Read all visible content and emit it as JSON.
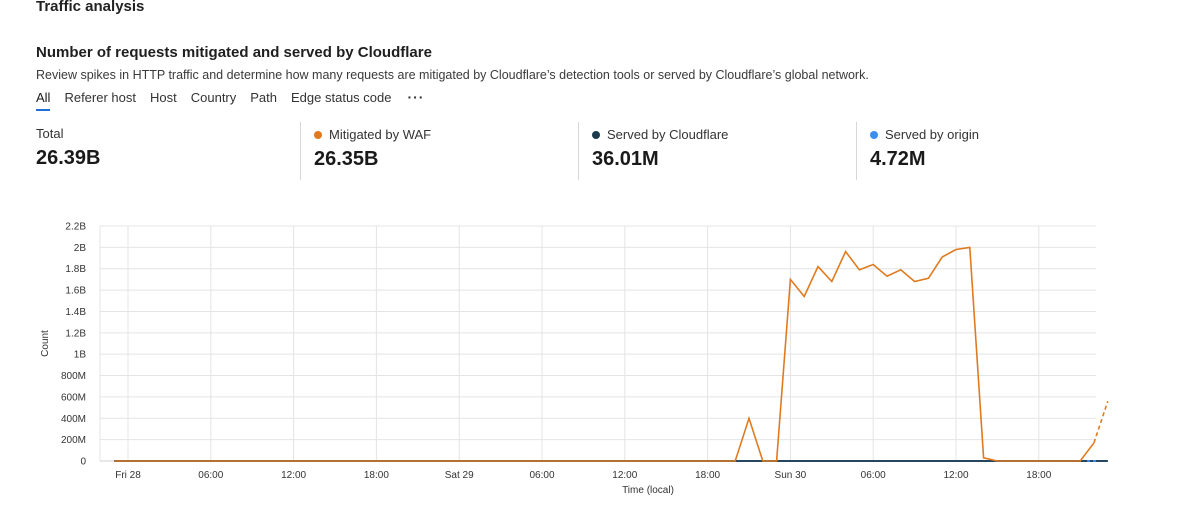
{
  "page": {
    "section_title": "Traffic analysis",
    "card_title": "Number of requests mitigated and served by Cloudflare",
    "card_description": "Review spikes in HTTP traffic and determine how many requests are mitigated by Cloudflare’s detection tools or served by Cloudflare’s global network."
  },
  "tabs": [
    "All",
    "Referer host",
    "Host",
    "Country",
    "Path",
    "Edge status code"
  ],
  "tabs_more": "···",
  "stats": {
    "total": {
      "label": "Total",
      "value": "26.39B"
    },
    "waf": {
      "label": "Mitigated by WAF",
      "value": "26.35B",
      "color": "#e07a1f"
    },
    "cloudflare": {
      "label": "Served by Cloudflare",
      "value": "36.01M",
      "color": "#1b3a4b"
    },
    "origin": {
      "label": "Served by origin",
      "value": "4.72M",
      "color": "#3b8ef0"
    }
  },
  "chart_data": {
    "type": "line",
    "xlabel": "Time (local)",
    "ylabel": "Count",
    "y_ticks": [
      "0",
      "200M",
      "400M",
      "600M",
      "800M",
      "1B",
      "1.2B",
      "1.4B",
      "1.6B",
      "1.8B",
      "2B",
      "2.2B"
    ],
    "ylim": [
      0,
      2200000000
    ],
    "x_tick_labels": [
      "Fri 28",
      "06:00",
      "12:00",
      "18:00",
      "Sat 29",
      "06:00",
      "12:00",
      "18:00",
      "Sun 30",
      "06:00",
      "12:00",
      "18:00"
    ],
    "x_tick_hours": [
      0,
      6,
      12,
      18,
      24,
      30,
      36,
      42,
      48,
      54,
      60,
      66
    ],
    "grid": true,
    "series": [
      {
        "name": "Mitigated by WAF",
        "color": "#e07a1f",
        "points": [
          [
            -1,
            0
          ],
          [
            44,
            0
          ],
          [
            45,
            400000000
          ],
          [
            46,
            0
          ],
          [
            47,
            0
          ],
          [
            48,
            1700000000
          ],
          [
            49,
            1540000000
          ],
          [
            50,
            1820000000
          ],
          [
            51,
            1680000000
          ],
          [
            52,
            1960000000
          ],
          [
            53,
            1790000000
          ],
          [
            54,
            1840000000
          ],
          [
            55,
            1730000000
          ],
          [
            56,
            1790000000
          ],
          [
            57,
            1680000000
          ],
          [
            58,
            1710000000
          ],
          [
            59,
            1910000000
          ],
          [
            60,
            1980000000
          ],
          [
            61,
            2000000000
          ],
          [
            62,
            30000000
          ],
          [
            63,
            0
          ],
          [
            69,
            0
          ],
          [
            70,
            170000000
          ]
        ],
        "dashed_tail": [
          [
            70,
            170000000
          ],
          [
            71,
            560000000
          ]
        ]
      },
      {
        "name": "Served by Cloudflare",
        "color": "#1b3a4b",
        "points": [
          [
            -1,
            0
          ],
          [
            71,
            0
          ]
        ]
      },
      {
        "name": "Served by origin",
        "color": "#3b8ef0",
        "points": [
          [
            -1,
            0
          ],
          [
            71,
            0
          ]
        ]
      }
    ]
  }
}
